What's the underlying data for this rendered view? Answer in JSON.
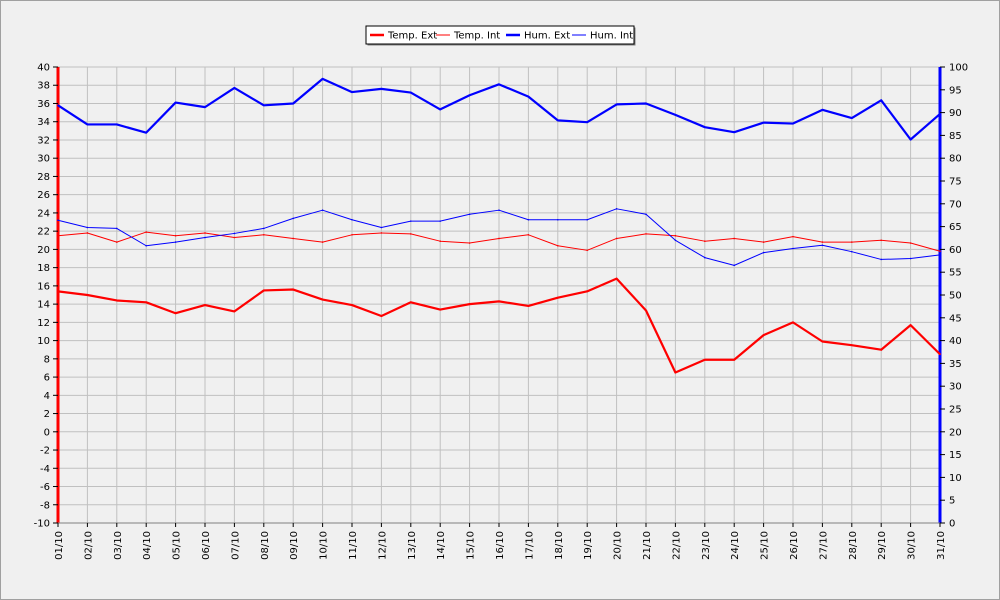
{
  "chart_data": {
    "type": "line",
    "title": "",
    "xlabel": "",
    "ylabel": "",
    "y2label": "",
    "categories": [
      "01/10",
      "02/10",
      "03/10",
      "04/10",
      "05/10",
      "06/10",
      "07/10",
      "08/10",
      "09/10",
      "10/10",
      "11/10",
      "12/10",
      "13/10",
      "14/10",
      "15/10",
      "16/10",
      "17/10",
      "18/10",
      "19/10",
      "20/10",
      "21/10",
      "22/10",
      "23/10",
      "24/10",
      "25/10",
      "26/10",
      "27/10",
      "28/10",
      "29/10",
      "30/10",
      "31/10"
    ],
    "ylim": [
      -10,
      40
    ],
    "y_ticks": [
      -10,
      -8,
      -6,
      -4,
      -2,
      0,
      2,
      4,
      6,
      8,
      10,
      12,
      14,
      16,
      18,
      20,
      22,
      24,
      26,
      28,
      30,
      32,
      34,
      36,
      38,
      40
    ],
    "y2lim": [
      0,
      100
    ],
    "y2_ticks": [
      0,
      5,
      10,
      15,
      20,
      25,
      30,
      35,
      40,
      45,
      50,
      55,
      60,
      65,
      70,
      75,
      80,
      85,
      90,
      95,
      100
    ],
    "grid": true,
    "legend_position": "top-center",
    "series": [
      {
        "name": "Temp. Ext",
        "axis": "left",
        "color": "#ff0000",
        "weight": "thick",
        "values": [
          15.4,
          15.0,
          14.4,
          14.2,
          13.0,
          13.9,
          13.2,
          15.5,
          15.6,
          14.5,
          13.9,
          12.7,
          14.2,
          13.4,
          14.0,
          14.3,
          13.8,
          14.7,
          15.4,
          16.8,
          13.3,
          6.5,
          7.9,
          7.9,
          10.6,
          12.0,
          9.9,
          9.5,
          9.0,
          11.7,
          8.5
        ]
      },
      {
        "name": "Temp. Int",
        "axis": "left",
        "color": "#ff0000",
        "weight": "thin",
        "values": [
          21.5,
          21.8,
          20.8,
          21.9,
          21.5,
          21.8,
          21.3,
          21.6,
          21.2,
          20.8,
          21.6,
          21.8,
          21.7,
          20.9,
          20.7,
          21.2,
          21.6,
          20.4,
          19.9,
          21.2,
          21.7,
          21.5,
          20.9,
          21.2,
          20.8,
          21.4,
          20.8,
          20.8,
          21.0,
          20.7,
          19.8
        ]
      },
      {
        "name": "Hum. Ext",
        "axis": "right",
        "color": "#0000ff",
        "weight": "thick",
        "values": [
          91.6,
          87.4,
          87.4,
          85.6,
          92.2,
          91.2,
          95.4,
          91.6,
          92.0,
          97.4,
          94.5,
          95.2,
          94.4,
          90.7,
          93.8,
          96.2,
          93.5,
          88.3,
          87.9,
          91.8,
          92.0,
          89.5,
          86.8,
          85.7,
          87.8,
          87.6,
          90.6,
          88.8,
          92.7,
          84.1,
          89.7
        ]
      },
      {
        "name": "Hum. Int",
        "axis": "right",
        "color": "#0000ff",
        "weight": "thin",
        "values": [
          66.4,
          64.8,
          64.6,
          60.8,
          61.6,
          62.6,
          63.5,
          64.6,
          66.8,
          68.6,
          66.5,
          64.8,
          66.2,
          66.2,
          67.7,
          68.6,
          66.5,
          66.5,
          66.5,
          68.9,
          67.7,
          62.0,
          58.2,
          56.5,
          59.3,
          60.2,
          60.9,
          59.5,
          57.8,
          58.0,
          58.8
        ]
      }
    ]
  }
}
